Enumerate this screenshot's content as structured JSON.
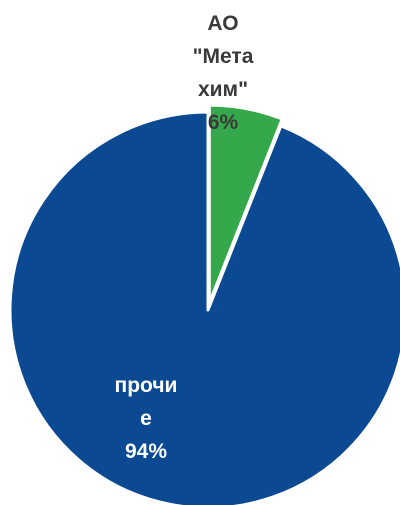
{
  "chart_data": {
    "type": "pie",
    "title": "",
    "slices": [
      {
        "label_lines": [
          "АО",
          "\"Мета",
          "хим\"",
          "6%"
        ],
        "value": 6,
        "color": "#34a84a",
        "label_color": "#3a3a3a",
        "exploded": true
      },
      {
        "label_lines": [
          "прочи",
          "е",
          "94%"
        ],
        "value": 94,
        "color": "#0b4a92",
        "label_color": "#ffffff",
        "exploded": false
      }
    ],
    "start_angle_deg": 0,
    "direction": "clockwise",
    "legend": "none"
  }
}
